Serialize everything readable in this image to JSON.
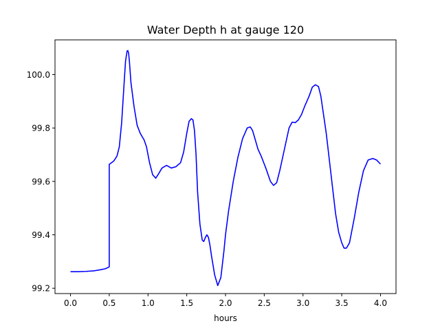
{
  "chart_data": {
    "type": "line",
    "title": "Water Depth h at gauge 120",
    "xlabel": "hours",
    "ylabel": "",
    "xlim": [
      -0.2,
      4.2
    ],
    "ylim": [
      99.18,
      100.13
    ],
    "x_ticks": [
      0.0,
      0.5,
      1.0,
      1.5,
      2.0,
      2.5,
      3.0,
      3.5,
      4.0
    ],
    "x_tick_labels": [
      "0.0",
      "0.5",
      "1.0",
      "1.5",
      "2.0",
      "2.5",
      "3.0",
      "3.5",
      "4.0"
    ],
    "y_ticks": [
      99.2,
      99.4,
      99.6,
      99.8,
      100.0
    ],
    "y_tick_labels": [
      "99.2",
      "99.4",
      "99.6",
      "99.8",
      "100.0"
    ],
    "grid": false,
    "line_color": "#0000ff",
    "series": [
      {
        "x": [
          0.0,
          0.1,
          0.2,
          0.3,
          0.4,
          0.45,
          0.5,
          0.5,
          0.52,
          0.56,
          0.6,
          0.63,
          0.66,
          0.69,
          0.71,
          0.73,
          0.74,
          0.75,
          0.76,
          0.78,
          0.82,
          0.86,
          0.9,
          0.95,
          0.98,
          1.02,
          1.06,
          1.1,
          1.14,
          1.18,
          1.24,
          1.3,
          1.36,
          1.42,
          1.46,
          1.5,
          1.53,
          1.56,
          1.58,
          1.6,
          1.62,
          1.64,
          1.67,
          1.7,
          1.72,
          1.74,
          1.76,
          1.78,
          1.8,
          1.82,
          1.86,
          1.9,
          1.94,
          1.98,
          2.0,
          2.04,
          2.1,
          2.16,
          2.22,
          2.28,
          2.32,
          2.35,
          2.38,
          2.42,
          2.46,
          2.52,
          2.58,
          2.62,
          2.66,
          2.7,
          2.76,
          2.82,
          2.86,
          2.9,
          2.94,
          2.98,
          3.02,
          3.08,
          3.12,
          3.16,
          3.2,
          3.23,
          3.26,
          3.3,
          3.36,
          3.42,
          3.46,
          3.5,
          3.53,
          3.56,
          3.6,
          3.66,
          3.72,
          3.78,
          3.84,
          3.9,
          3.95,
          4.0
        ],
        "y": [
          99.262,
          99.262,
          99.263,
          99.265,
          99.27,
          99.273,
          99.28,
          99.664,
          99.668,
          99.677,
          99.695,
          99.73,
          99.82,
          99.96,
          100.05,
          100.088,
          100.09,
          100.08,
          100.05,
          99.97,
          99.88,
          99.81,
          99.78,
          99.755,
          99.73,
          99.67,
          99.625,
          99.612,
          99.63,
          99.65,
          99.66,
          99.65,
          99.655,
          99.67,
          99.71,
          99.78,
          99.825,
          99.835,
          99.83,
          99.79,
          99.7,
          99.56,
          99.44,
          99.38,
          99.375,
          99.39,
          99.4,
          99.39,
          99.36,
          99.32,
          99.25,
          99.21,
          99.24,
          99.34,
          99.4,
          99.49,
          99.6,
          99.69,
          99.76,
          99.8,
          99.804,
          99.79,
          99.76,
          99.72,
          99.695,
          99.65,
          99.6,
          99.585,
          99.595,
          99.64,
          99.72,
          99.8,
          99.822,
          99.82,
          99.83,
          99.85,
          99.88,
          99.92,
          99.953,
          99.962,
          99.955,
          99.92,
          99.86,
          99.78,
          99.63,
          99.48,
          99.41,
          99.37,
          99.35,
          99.35,
          99.37,
          99.46,
          99.56,
          99.64,
          99.68,
          99.686,
          99.68,
          99.665
        ]
      }
    ]
  }
}
